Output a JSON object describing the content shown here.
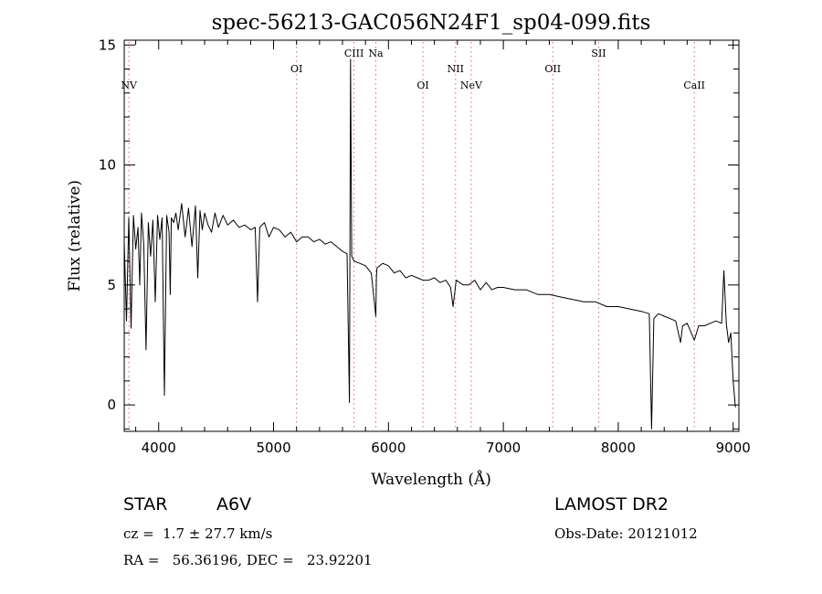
{
  "colors": {
    "spectrum": "#000000",
    "line_marker": "#e0607a",
    "axis": "#000000",
    "background": "#ffffff"
  },
  "chart_data": {
    "type": "line",
    "title": "spec-56213-GAC056N24F1_sp04-099.fits",
    "xlabel": "Wavelength (Å)",
    "ylabel": "Flux (relative)",
    "xlim": [
      3700,
      9050
    ],
    "ylim": [
      -1.1,
      15.2
    ],
    "xticks": [
      4000,
      5000,
      6000,
      7000,
      8000,
      9000
    ],
    "xtick_labels": [
      "4000",
      "5000",
      "6000",
      "7000",
      "8000",
      "9000"
    ],
    "yticks": [
      0,
      5,
      10,
      15
    ],
    "ytick_labels": [
      "0",
      "5",
      "10",
      "15"
    ],
    "grid": false,
    "legend": "none",
    "series": [
      {
        "x": [
          3700,
          3720,
          3740,
          3760,
          3780,
          3800,
          3820,
          3835,
          3850,
          3870,
          3890,
          3910,
          3930,
          3950,
          3970,
          3990,
          4010,
          4030,
          4050,
          4070,
          4090,
          4101,
          4110,
          4130,
          4150,
          4170,
          4200,
          4230,
          4260,
          4290,
          4320,
          4340,
          4360,
          4380,
          4400,
          4430,
          4460,
          4490,
          4520,
          4560,
          4600,
          4650,
          4700,
          4750,
          4800,
          4840,
          4861,
          4880,
          4920,
          4960,
          5000,
          5050,
          5100,
          5150,
          5200,
          5250,
          5300,
          5350,
          5400,
          5450,
          5500,
          5550,
          5600,
          5640,
          5660,
          5670,
          5680,
          5700,
          5750,
          5800,
          5850,
          5890,
          5895,
          5900,
          5950,
          6000,
          6050,
          6100,
          6150,
          6200,
          6250,
          6300,
          6350,
          6400,
          6450,
          6500,
          6540,
          6563,
          6590,
          6650,
          6700,
          6750,
          6800,
          6850,
          6900,
          6950,
          7000,
          7100,
          7200,
          7300,
          7400,
          7500,
          7600,
          7700,
          7800,
          7900,
          8000,
          8100,
          8200,
          8270,
          8290,
          8310,
          8350,
          8400,
          8450,
          8500,
          8542,
          8560,
          8600,
          8662,
          8700,
          8750,
          8800,
          8850,
          8900,
          8920,
          8940,
          8960,
          8980,
          9000,
          9020
        ],
        "y": [
          6.8,
          3.5,
          7.8,
          3.2,
          7.9,
          6.5,
          7.4,
          5.0,
          8.0,
          6.7,
          2.3,
          7.6,
          6.2,
          7.7,
          4.3,
          7.9,
          6.9,
          7.8,
          0.4,
          7.9,
          7.2,
          4.6,
          7.8,
          7.6,
          8.0,
          7.3,
          8.4,
          7.0,
          8.2,
          6.6,
          8.3,
          5.3,
          8.1,
          7.3,
          8.0,
          7.5,
          7.2,
          8.0,
          7.4,
          7.9,
          7.5,
          7.7,
          7.4,
          7.5,
          7.3,
          7.4,
          4.3,
          7.4,
          7.6,
          7.0,
          7.4,
          7.3,
          7.0,
          7.2,
          6.8,
          7.0,
          7.0,
          6.8,
          6.9,
          6.7,
          6.8,
          6.6,
          6.4,
          6.3,
          0.1,
          14.4,
          6.2,
          6.0,
          5.9,
          5.8,
          5.5,
          3.7,
          5.3,
          5.7,
          5.9,
          5.8,
          5.5,
          5.6,
          5.3,
          5.4,
          5.3,
          5.2,
          5.2,
          5.3,
          5.1,
          5.2,
          4.9,
          4.1,
          5.2,
          5.0,
          5.0,
          5.2,
          4.8,
          5.1,
          4.8,
          4.9,
          4.9,
          4.8,
          4.8,
          4.6,
          4.6,
          4.5,
          4.4,
          4.3,
          4.3,
          4.1,
          4.1,
          4.0,
          3.9,
          3.8,
          -1.0,
          3.6,
          3.8,
          3.7,
          3.6,
          3.5,
          2.6,
          3.3,
          3.4,
          2.7,
          3.3,
          3.3,
          3.4,
          3.5,
          3.4,
          5.6,
          3.4,
          2.6,
          3.0,
          1.0,
          -0.1
        ]
      }
    ],
    "line_markers": [
      {
        "label": "NV",
        "x": 3741,
        "label_row": 2
      },
      {
        "label": "OI",
        "x": 5200,
        "label_row": 1
      },
      {
        "label": "CIII",
        "x": 5700,
        "label_row": 0
      },
      {
        "label": "Na",
        "x": 5890,
        "label_row": 0
      },
      {
        "label": "OI",
        "x": 6300,
        "label_row": 2
      },
      {
        "label": "NII",
        "x": 6584,
        "label_row": 1
      },
      {
        "label": "NeV",
        "x": 6720,
        "label_row": 2
      },
      {
        "label": "OII",
        "x": 7430,
        "label_row": 1
      },
      {
        "label": "SII",
        "x": 7830,
        "label_row": 0
      },
      {
        "label": "CaII",
        "x": 8662,
        "label_row": 2
      }
    ]
  },
  "info": {
    "object_class": "STAR",
    "subclass": "A6V",
    "survey": "LAMOST DR2",
    "redshift": "cz =  1.7 ± 27.7 km/s",
    "obs_date": "Obs-Date: 20121012",
    "coordinates": "RA =   56.36196, DEC =   23.92201"
  }
}
